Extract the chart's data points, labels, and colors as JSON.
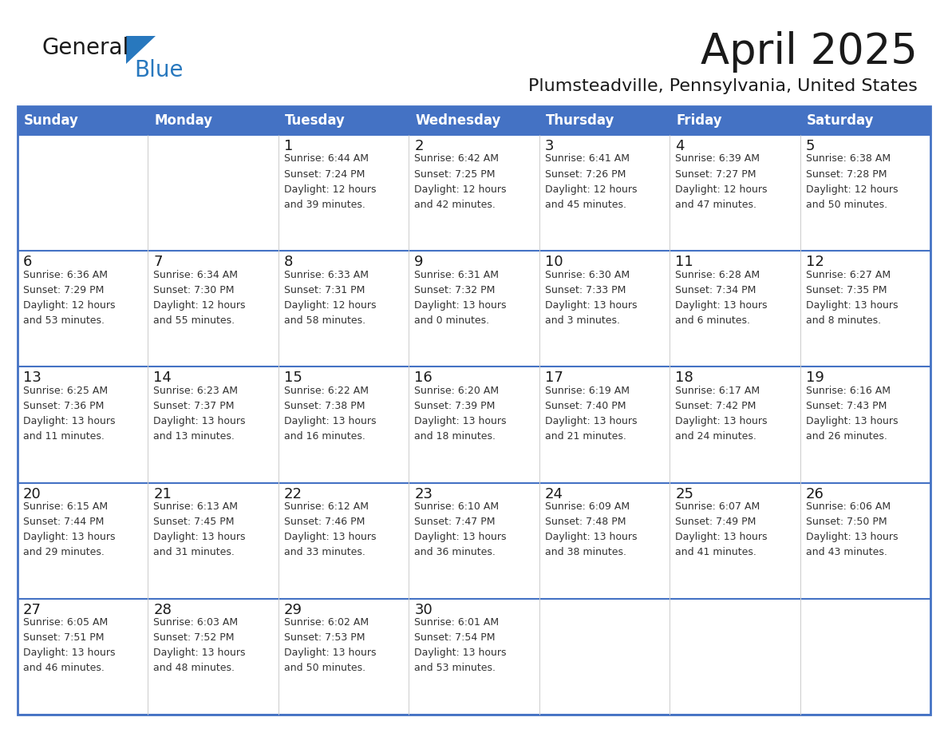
{
  "title": "April 2025",
  "subtitle": "Plumsteadville, Pennsylvania, United States",
  "header_bg_color": "#4472C4",
  "header_text_color": "#FFFFFF",
  "cell_bg_color": "#FFFFFF",
  "border_color": "#4472C4",
  "row_divider_color": "#4472C4",
  "text_color": "#000000",
  "info_text_color": "#333333",
  "days_of_week": [
    "Sunday",
    "Monday",
    "Tuesday",
    "Wednesday",
    "Thursday",
    "Friday",
    "Saturday"
  ],
  "weeks": [
    [
      {
        "day": "",
        "info": ""
      },
      {
        "day": "",
        "info": ""
      },
      {
        "day": "1",
        "info": "Sunrise: 6:44 AM\nSunset: 7:24 PM\nDaylight: 12 hours\nand 39 minutes."
      },
      {
        "day": "2",
        "info": "Sunrise: 6:42 AM\nSunset: 7:25 PM\nDaylight: 12 hours\nand 42 minutes."
      },
      {
        "day": "3",
        "info": "Sunrise: 6:41 AM\nSunset: 7:26 PM\nDaylight: 12 hours\nand 45 minutes."
      },
      {
        "day": "4",
        "info": "Sunrise: 6:39 AM\nSunset: 7:27 PM\nDaylight: 12 hours\nand 47 minutes."
      },
      {
        "day": "5",
        "info": "Sunrise: 6:38 AM\nSunset: 7:28 PM\nDaylight: 12 hours\nand 50 minutes."
      }
    ],
    [
      {
        "day": "6",
        "info": "Sunrise: 6:36 AM\nSunset: 7:29 PM\nDaylight: 12 hours\nand 53 minutes."
      },
      {
        "day": "7",
        "info": "Sunrise: 6:34 AM\nSunset: 7:30 PM\nDaylight: 12 hours\nand 55 minutes."
      },
      {
        "day": "8",
        "info": "Sunrise: 6:33 AM\nSunset: 7:31 PM\nDaylight: 12 hours\nand 58 minutes."
      },
      {
        "day": "9",
        "info": "Sunrise: 6:31 AM\nSunset: 7:32 PM\nDaylight: 13 hours\nand 0 minutes."
      },
      {
        "day": "10",
        "info": "Sunrise: 6:30 AM\nSunset: 7:33 PM\nDaylight: 13 hours\nand 3 minutes."
      },
      {
        "day": "11",
        "info": "Sunrise: 6:28 AM\nSunset: 7:34 PM\nDaylight: 13 hours\nand 6 minutes."
      },
      {
        "day": "12",
        "info": "Sunrise: 6:27 AM\nSunset: 7:35 PM\nDaylight: 13 hours\nand 8 minutes."
      }
    ],
    [
      {
        "day": "13",
        "info": "Sunrise: 6:25 AM\nSunset: 7:36 PM\nDaylight: 13 hours\nand 11 minutes."
      },
      {
        "day": "14",
        "info": "Sunrise: 6:23 AM\nSunset: 7:37 PM\nDaylight: 13 hours\nand 13 minutes."
      },
      {
        "day": "15",
        "info": "Sunrise: 6:22 AM\nSunset: 7:38 PM\nDaylight: 13 hours\nand 16 minutes."
      },
      {
        "day": "16",
        "info": "Sunrise: 6:20 AM\nSunset: 7:39 PM\nDaylight: 13 hours\nand 18 minutes."
      },
      {
        "day": "17",
        "info": "Sunrise: 6:19 AM\nSunset: 7:40 PM\nDaylight: 13 hours\nand 21 minutes."
      },
      {
        "day": "18",
        "info": "Sunrise: 6:17 AM\nSunset: 7:42 PM\nDaylight: 13 hours\nand 24 minutes."
      },
      {
        "day": "19",
        "info": "Sunrise: 6:16 AM\nSunset: 7:43 PM\nDaylight: 13 hours\nand 26 minutes."
      }
    ],
    [
      {
        "day": "20",
        "info": "Sunrise: 6:15 AM\nSunset: 7:44 PM\nDaylight: 13 hours\nand 29 minutes."
      },
      {
        "day": "21",
        "info": "Sunrise: 6:13 AM\nSunset: 7:45 PM\nDaylight: 13 hours\nand 31 minutes."
      },
      {
        "day": "22",
        "info": "Sunrise: 6:12 AM\nSunset: 7:46 PM\nDaylight: 13 hours\nand 33 minutes."
      },
      {
        "day": "23",
        "info": "Sunrise: 6:10 AM\nSunset: 7:47 PM\nDaylight: 13 hours\nand 36 minutes."
      },
      {
        "day": "24",
        "info": "Sunrise: 6:09 AM\nSunset: 7:48 PM\nDaylight: 13 hours\nand 38 minutes."
      },
      {
        "day": "25",
        "info": "Sunrise: 6:07 AM\nSunset: 7:49 PM\nDaylight: 13 hours\nand 41 minutes."
      },
      {
        "day": "26",
        "info": "Sunrise: 6:06 AM\nSunset: 7:50 PM\nDaylight: 13 hours\nand 43 minutes."
      }
    ],
    [
      {
        "day": "27",
        "info": "Sunrise: 6:05 AM\nSunset: 7:51 PM\nDaylight: 13 hours\nand 46 minutes."
      },
      {
        "day": "28",
        "info": "Sunrise: 6:03 AM\nSunset: 7:52 PM\nDaylight: 13 hours\nand 48 minutes."
      },
      {
        "day": "29",
        "info": "Sunrise: 6:02 AM\nSunset: 7:53 PM\nDaylight: 13 hours\nand 50 minutes."
      },
      {
        "day": "30",
        "info": "Sunrise: 6:01 AM\nSunset: 7:54 PM\nDaylight: 13 hours\nand 53 minutes."
      },
      {
        "day": "",
        "info": ""
      },
      {
        "day": "",
        "info": ""
      },
      {
        "day": "",
        "info": ""
      }
    ]
  ],
  "logo_general_color": "#1a1a1a",
  "logo_blue_color": "#2878BE",
  "logo_triangle_color": "#2878BE",
  "title_fontsize": 38,
  "subtitle_fontsize": 16,
  "header_fontsize": 12,
  "day_num_fontsize": 13,
  "info_fontsize": 9
}
